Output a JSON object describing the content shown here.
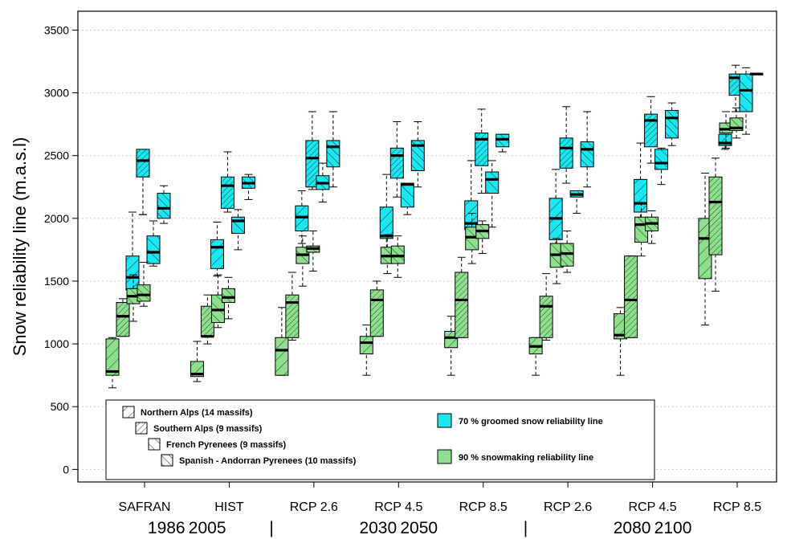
{
  "chart_data": {
    "type": "boxplot",
    "ylabel": "Snow reliability line (m.a.s.l)",
    "ylim": [
      -100,
      3650
    ],
    "yticks": [
      0,
      500,
      1000,
      1500,
      2000,
      2500,
      3000,
      3500
    ],
    "grid": "horizontal-dotted",
    "categories": [
      "SAFRAN",
      "HIST",
      "RCP 2.6",
      "RCP 4.5",
      "RCP 8.5",
      "RCP 2.6",
      "RCP 4.5",
      "RCP 8.5"
    ],
    "periods": [
      {
        "label": "1986 2005",
        "from": 0,
        "to": 1
      },
      {
        "label": "2030 2050",
        "from": 2,
        "to": 4
      },
      {
        "label": "2080 2100",
        "from": 5,
        "to": 7
      }
    ],
    "period_separator": "|",
    "region_patterns": [
      "back",
      "dense",
      "forward",
      "forward-sparse"
    ],
    "series": [
      {
        "name": "70 % groomed snow reliability line",
        "color": "#1ce6f0",
        "boxes": [
          [
            [
              1370,
              1430,
              1530,
              1700,
              2050
            ],
            [
              2030,
              2330,
              2460,
              2550,
              2030
            ],
            [
              1620,
              1640,
              1730,
              1860,
              1980
            ],
            [
              1960,
              2000,
              2080,
              2200,
              2260
            ]
          ],
          [
            [
              1540,
              1600,
              1770,
              1830,
              1970
            ],
            [
              2050,
              2080,
              2260,
              2330,
              2530
            ],
            [
              1750,
              1880,
              1980,
              2010,
              2070
            ],
            [
              2150,
              2240,
              2280,
              2330,
              2350
            ]
          ],
          [
            [
              1800,
              1900,
              2010,
              2100,
              2220
            ],
            [
              2230,
              2250,
              2480,
              2620,
              2850
            ],
            [
              2130,
              2230,
              2280,
              2340,
              2440
            ],
            [
              2250,
              2410,
              2570,
              2620,
              2850
            ]
          ],
          [
            [
              1720,
              1840,
              1860,
              2090,
              2350
            ],
            [
              2170,
              2320,
              2500,
              2560,
              2770
            ],
            [
              2030,
              2090,
              2270,
              2280,
              2280
            ],
            [
              2250,
              2380,
              2580,
              2620,
              2770
            ]
          ],
          [
            [
              1820,
              1910,
              1960,
              2140,
              2460
            ],
            [
              2200,
              2420,
              2630,
              2680,
              2870
            ],
            [
              1930,
              2200,
              2310,
              2370,
              2460
            ],
            [
              2530,
              2570,
              2630,
              2670,
              2670
            ]
          ],
          [
            [
              1790,
              1830,
              2000,
              2160,
              2390
            ],
            [
              2280,
              2400,
              2560,
              2640,
              2890
            ],
            [
              2040,
              2170,
              2190,
              2220,
              2220
            ],
            [
              2250,
              2410,
              2550,
              2610,
              2850
            ]
          ],
          [
            [
              1960,
              2050,
              2120,
              2310,
              2600
            ],
            [
              2440,
              2570,
              2780,
              2830,
              2970
            ],
            [
              2270,
              2390,
              2440,
              2550,
              2560
            ],
            [
              2580,
              2640,
              2800,
              2860,
              2920
            ]
          ],
          [
            [
              2550,
              2580,
              2600,
              2670,
              2670
            ],
            [
              2850,
              2980,
              3120,
              3150,
              3220
            ],
            [
              2670,
              2850,
              3020,
              3150,
              3200
            ],
            [
              3150,
              3150,
              3150,
              3150,
              3150
            ]
          ]
        ]
      },
      {
        "name": "90 % snowmaking reliability line",
        "color": "#8ee08e",
        "boxes": [
          [
            [
              650,
              750,
              780,
              1040,
              1050
            ],
            [
              1060,
              1060,
              1220,
              1330,
              1360
            ],
            [
              1180,
              1320,
              1380,
              1440,
              1550
            ],
            [
              1300,
              1340,
              1390,
              1470,
              1650
            ]
          ],
          [
            [
              700,
              740,
              760,
              860,
              1020
            ],
            [
              1000,
              1060,
              1060,
              1300,
              1390
            ],
            [
              1130,
              1170,
              1270,
              1390,
              1550
            ],
            [
              1200,
              1330,
              1370,
              1440,
              1530
            ]
          ],
          [
            [
              750,
              750,
              950,
              1050,
              1290
            ],
            [
              1030,
              1050,
              1330,
              1390,
              1570
            ],
            [
              1460,
              1640,
              1710,
              1770,
              1860
            ],
            [
              1580,
              1730,
              1760,
              1780,
              1900
            ]
          ],
          [
            [
              750,
              920,
              1010,
              1060,
              1150
            ],
            [
              1060,
              1060,
              1350,
              1430,
              1500
            ],
            [
              1560,
              1640,
              1700,
              1770,
              1870
            ],
            [
              1530,
              1640,
              1700,
              1780,
              1860
            ]
          ],
          [
            [
              750,
              970,
              1050,
              1100,
              1220
            ],
            [
              1050,
              1050,
              1350,
              1570,
              1690
            ],
            [
              1640,
              1750,
              1850,
              1930,
              2040
            ],
            [
              1720,
              1840,
              1900,
              1950,
              1980
            ]
          ],
          [
            [
              750,
              920,
              980,
              1050,
              1050
            ],
            [
              1030,
              1050,
              1300,
              1380,
              1560
            ],
            [
              1480,
              1610,
              1710,
              1800,
              1840
            ],
            [
              1570,
              1620,
              1720,
              1800,
              1900
            ]
          ],
          [
            [
              750,
              1040,
              1070,
              1240,
              1290
            ],
            [
              1050,
              1050,
              1350,
              1700,
              1700
            ],
            [
              1700,
              1810,
              1950,
              2010,
              2120
            ],
            [
              1800,
              1900,
              1960,
              2010,
              2060
            ]
          ],
          [
            [
              1150,
              1520,
              1840,
              2000,
              2360
            ],
            [
              1420,
              1710,
              2130,
              2330,
              2480
            ],
            [
              2560,
              2680,
              2710,
              2760,
              2850
            ],
            [
              2640,
              2700,
              2720,
              2800,
              2880
            ]
          ]
        ]
      }
    ],
    "regions": [
      "Northern Alps (14 massifs)",
      "Southern Alps (9 massifs)",
      "French Pyrenees (9 massifs)",
      "Spanish - Andorran Pyrenees (10 massifs)"
    ]
  }
}
